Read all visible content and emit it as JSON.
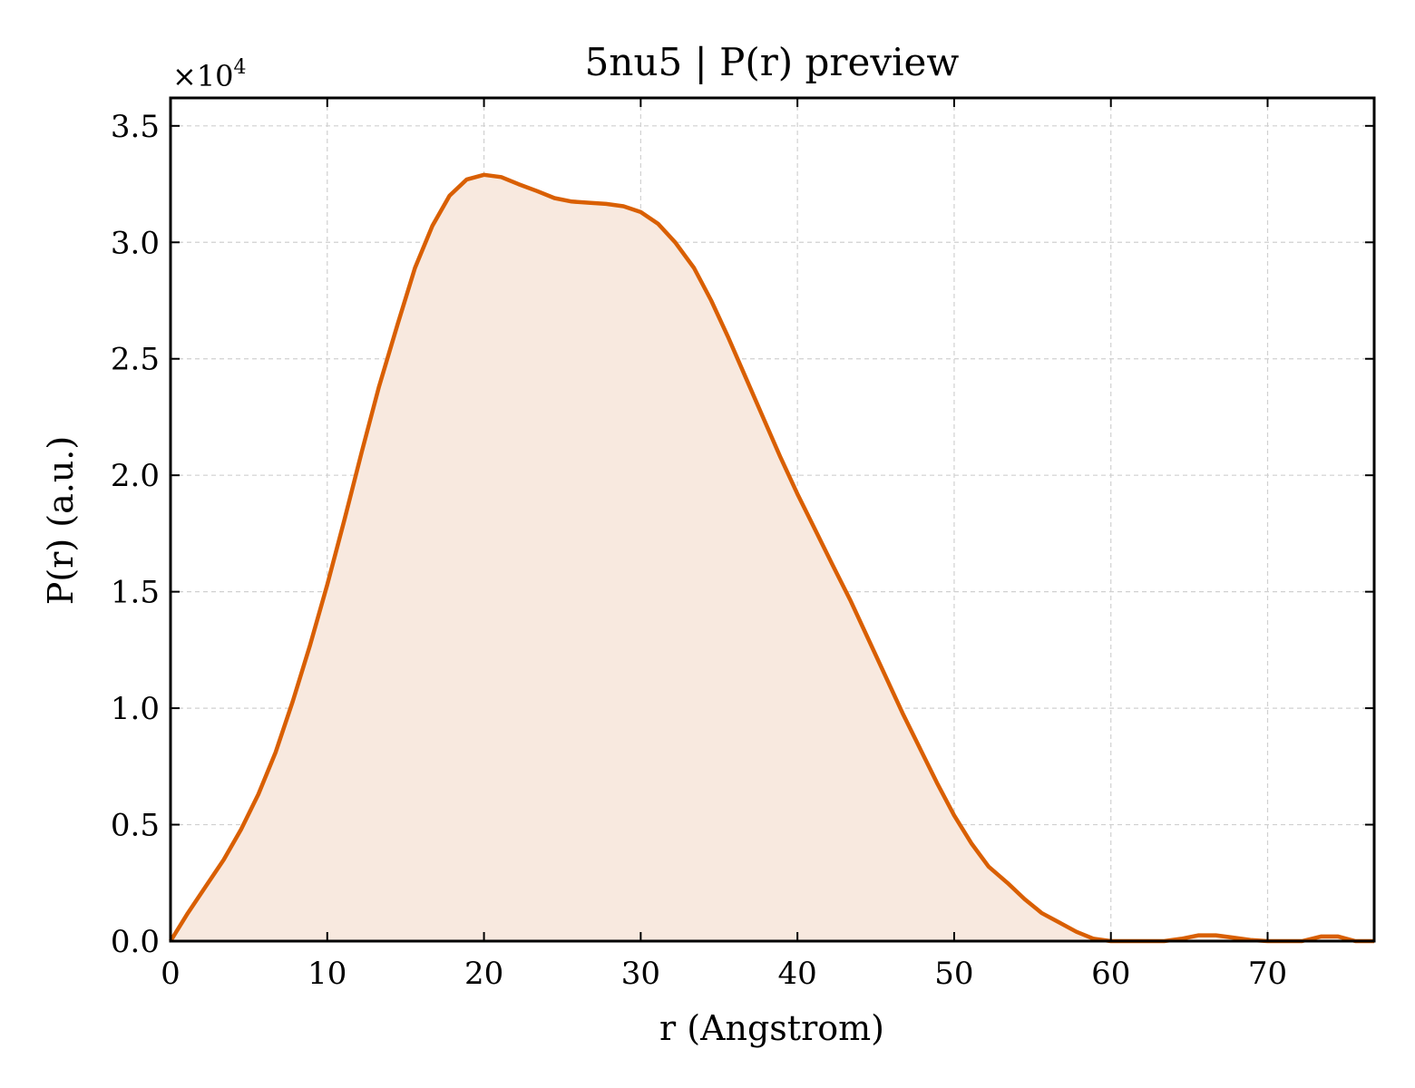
{
  "chart_data": {
    "type": "area",
    "title": "5nu5 | P(r) preview",
    "xlabel": "r (Angstrom)",
    "ylabel": "P(r) (a.u.)",
    "y_multiplier_base": "×10",
    "y_multiplier_exp": "4",
    "xlim": [
      0,
      76.8
    ],
    "ylim": [
      0,
      3.62
    ],
    "x_ticks": [
      0,
      10,
      20,
      30,
      40,
      50,
      60,
      70
    ],
    "x_tick_labels": [
      "0",
      "10",
      "20",
      "30",
      "40",
      "50",
      "60",
      "70"
    ],
    "y_ticks": [
      0.0,
      0.5,
      1.0,
      1.5,
      2.0,
      2.5,
      3.0,
      3.5
    ],
    "y_tick_labels": [
      "0.0",
      "0.5",
      "1.0",
      "1.5",
      "2.0",
      "2.5",
      "3.0",
      "3.5"
    ],
    "grid": true,
    "line_color": "#d95f02",
    "fill_color": "#f8e9df",
    "series": [
      {
        "x": [
          0.0,
          1.1,
          2.2,
          3.4,
          4.5,
          5.6,
          6.7,
          7.8,
          8.9,
          10.0,
          11.1,
          12.2,
          13.3,
          14.5,
          15.6,
          16.7,
          17.8,
          18.9,
          20.0,
          21.1,
          22.2,
          23.4,
          24.5,
          25.6,
          26.7,
          27.8,
          28.9,
          30.0,
          31.1,
          32.2,
          33.4,
          34.5,
          35.6,
          36.7,
          37.8,
          38.9,
          40.0,
          41.1,
          42.2,
          43.4,
          44.5,
          45.6,
          46.7,
          47.8,
          48.9,
          50.0,
          51.1,
          52.2,
          53.4,
          54.5,
          55.6,
          56.7,
          57.8,
          58.9,
          60.0,
          61.1,
          62.2,
          63.4,
          64.5,
          65.6,
          66.7,
          67.8,
          68.9,
          70.0,
          71.1,
          72.2,
          73.4,
          74.5,
          75.6,
          76.8
        ],
        "values": [
          0.0,
          0.12,
          0.23,
          0.35,
          0.48,
          0.63,
          0.81,
          1.03,
          1.27,
          1.53,
          1.81,
          2.1,
          2.38,
          2.65,
          2.89,
          3.07,
          3.2,
          3.27,
          3.29,
          3.28,
          3.25,
          3.22,
          3.19,
          3.175,
          3.17,
          3.165,
          3.155,
          3.13,
          3.08,
          3.0,
          2.89,
          2.75,
          2.59,
          2.42,
          2.25,
          2.08,
          1.92,
          1.77,
          1.62,
          1.46,
          1.3,
          1.14,
          0.98,
          0.83,
          0.68,
          0.54,
          0.42,
          0.32,
          0.25,
          0.18,
          0.12,
          0.08,
          0.04,
          0.01,
          0.0,
          0.0,
          0.0,
          0.0,
          0.01,
          0.025,
          0.025,
          0.015,
          0.005,
          0.0,
          0.0,
          0.0,
          0.02,
          0.02,
          0.0,
          0.0
        ]
      }
    ]
  }
}
